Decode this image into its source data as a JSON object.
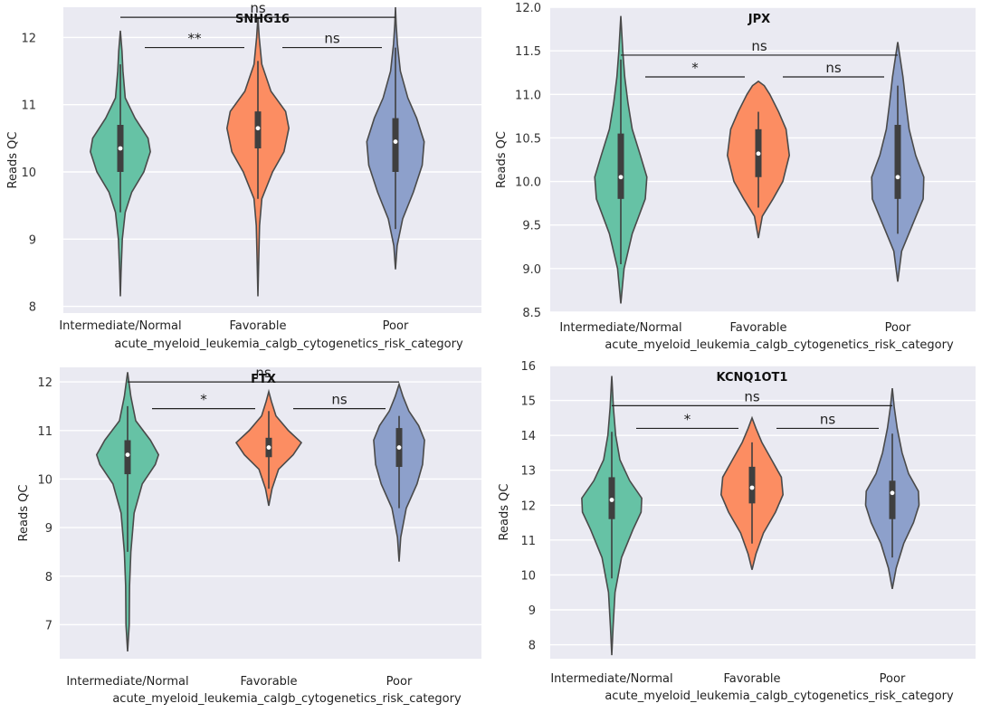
{
  "xlabel": "acute_myeloid_leukemia_calgb_cytogenetics_risk_category",
  "ylabel": "Reads QC",
  "colors": {
    "Intermediate/Normal": "#66c2a5",
    "Favorable": "#fc8d62",
    "Poor": "#8da0cb"
  },
  "chart_data": [
    {
      "type": "violin",
      "title": "SNHG16",
      "categories": [
        "Intermediate/Normal",
        "Favorable",
        "Poor"
      ],
      "ylim": [
        7.9,
        12.45
      ],
      "yticks": [
        "8",
        "9",
        "10",
        "11",
        "12"
      ],
      "violins": [
        {
          "category": "Intermediate/Normal",
          "min": 8.15,
          "max": 12.1,
          "whisker_low": 9.4,
          "whisker_high": 11.6,
          "q1": 10.0,
          "q3": 10.7,
          "median": 10.35,
          "shape": [
            [
              8.15,
              0
            ],
            [
              8.5,
              0.02
            ],
            [
              9.0,
              0.06
            ],
            [
              9.4,
              0.15
            ],
            [
              9.7,
              0.35
            ],
            [
              10.0,
              0.72
            ],
            [
              10.3,
              0.92
            ],
            [
              10.5,
              0.85
            ],
            [
              10.8,
              0.45
            ],
            [
              11.1,
              0.15
            ],
            [
              11.5,
              0.08
            ],
            [
              11.8,
              0.05
            ],
            [
              12.1,
              0
            ]
          ]
        },
        {
          "category": "Favorable",
          "min": 8.15,
          "max": 12.3,
          "whisker_low": 9.6,
          "whisker_high": 11.65,
          "q1": 10.35,
          "q3": 10.9,
          "median": 10.65,
          "shape": [
            [
              8.15,
              0
            ],
            [
              8.6,
              0.02
            ],
            [
              9.2,
              0.05
            ],
            [
              9.6,
              0.12
            ],
            [
              10.0,
              0.45
            ],
            [
              10.3,
              0.8
            ],
            [
              10.65,
              0.95
            ],
            [
              10.9,
              0.85
            ],
            [
              11.2,
              0.4
            ],
            [
              11.6,
              0.12
            ],
            [
              12.0,
              0.04
            ],
            [
              12.3,
              0
            ]
          ]
        },
        {
          "category": "Poor",
          "min": 8.55,
          "max": 12.45,
          "whisker_low": 9.15,
          "whisker_high": 11.85,
          "q1": 10.0,
          "q3": 10.8,
          "median": 10.45,
          "shape": [
            [
              8.55,
              0
            ],
            [
              8.9,
              0.05
            ],
            [
              9.3,
              0.22
            ],
            [
              9.7,
              0.55
            ],
            [
              10.1,
              0.82
            ],
            [
              10.45,
              0.88
            ],
            [
              10.8,
              0.65
            ],
            [
              11.1,
              0.38
            ],
            [
              11.5,
              0.15
            ],
            [
              11.9,
              0.06
            ],
            [
              12.2,
              0.02
            ],
            [
              12.45,
              0
            ]
          ]
        }
      ],
      "significance": [
        {
          "from": 0,
          "to": 2,
          "label": "ns",
          "y": 12.3,
          "span": "wide"
        },
        {
          "from": 0,
          "to": 1,
          "label": "**",
          "y": 11.85,
          "span": "inner"
        },
        {
          "from": 1,
          "to": 2,
          "label": "ns",
          "y": 11.85,
          "span": "inner"
        }
      ]
    },
    {
      "type": "violin",
      "title": "JPX",
      "categories": [
        "Intermediate/Normal",
        "Favorable",
        "Poor"
      ],
      "ylim": [
        8.5,
        12.0
      ],
      "yticks": [
        "8.5",
        "9.0",
        "9.5",
        "10.0",
        "10.5",
        "11.0",
        "11.5",
        "12.0"
      ],
      "violins": [
        {
          "category": "Intermediate/Normal",
          "min": 8.6,
          "max": 11.9,
          "whisker_low": 9.05,
          "whisker_high": 11.4,
          "q1": 9.8,
          "q3": 10.55,
          "median": 10.05,
          "shape": [
            [
              8.6,
              0
            ],
            [
              9.0,
              0.1
            ],
            [
              9.4,
              0.35
            ],
            [
              9.8,
              0.75
            ],
            [
              10.05,
              0.8
            ],
            [
              10.3,
              0.6
            ],
            [
              10.6,
              0.35
            ],
            [
              10.9,
              0.22
            ],
            [
              11.2,
              0.12
            ],
            [
              11.5,
              0.06
            ],
            [
              11.9,
              0
            ]
          ]
        },
        {
          "category": "Favorable",
          "min": 9.35,
          "max": 11.15,
          "whisker_low": 9.7,
          "whisker_high": 10.8,
          "q1": 10.05,
          "q3": 10.6,
          "median": 10.32,
          "shape": [
            [
              9.35,
              0
            ],
            [
              9.6,
              0.12
            ],
            [
              9.8,
              0.45
            ],
            [
              10.0,
              0.75
            ],
            [
              10.3,
              0.95
            ],
            [
              10.6,
              0.85
            ],
            [
              10.8,
              0.62
            ],
            [
              11.0,
              0.35
            ],
            [
              11.1,
              0.18
            ],
            [
              11.15,
              0
            ]
          ]
        },
        {
          "category": "Poor",
          "min": 8.85,
          "max": 11.6,
          "whisker_low": 9.4,
          "whisker_high": 11.1,
          "q1": 9.8,
          "q3": 10.65,
          "median": 10.05,
          "shape": [
            [
              8.85,
              0
            ],
            [
              9.2,
              0.12
            ],
            [
              9.5,
              0.45
            ],
            [
              9.8,
              0.78
            ],
            [
              10.05,
              0.8
            ],
            [
              10.3,
              0.55
            ],
            [
              10.6,
              0.35
            ],
            [
              10.9,
              0.25
            ],
            [
              11.2,
              0.16
            ],
            [
              11.6,
              0
            ]
          ]
        }
      ],
      "significance": [
        {
          "from": 0,
          "to": 2,
          "label": "ns",
          "y": 11.45,
          "span": "wide"
        },
        {
          "from": 0,
          "to": 1,
          "label": "*",
          "y": 11.2,
          "span": "inner"
        },
        {
          "from": 1,
          "to": 2,
          "label": "ns",
          "y": 11.2,
          "span": "inner"
        }
      ]
    },
    {
      "type": "violin",
      "title": "FTX",
      "categories": [
        "Intermediate/Normal",
        "Favorable",
        "Poor"
      ],
      "ylim": [
        6.3,
        12.3
      ],
      "yticks": [
        "7",
        "8",
        "9",
        "10",
        "11",
        "12"
      ],
      "violins": [
        {
          "category": "Intermediate/Normal",
          "min": 6.45,
          "max": 12.2,
          "whisker_low": 8.5,
          "whisker_high": 11.5,
          "q1": 10.1,
          "q3": 10.8,
          "median": 10.5,
          "shape": [
            [
              6.45,
              0
            ],
            [
              7.0,
              0.05
            ],
            [
              7.8,
              0.06
            ],
            [
              8.5,
              0.1
            ],
            [
              9.3,
              0.2
            ],
            [
              9.9,
              0.45
            ],
            [
              10.3,
              0.85
            ],
            [
              10.5,
              0.95
            ],
            [
              10.8,
              0.7
            ],
            [
              11.2,
              0.25
            ],
            [
              11.7,
              0.1
            ],
            [
              12.2,
              0
            ]
          ]
        },
        {
          "category": "Favorable",
          "min": 9.45,
          "max": 11.8,
          "whisker_low": 9.8,
          "whisker_high": 11.4,
          "q1": 10.45,
          "q3": 10.85,
          "median": 10.65,
          "shape": [
            [
              9.45,
              0
            ],
            [
              9.8,
              0.1
            ],
            [
              10.2,
              0.3
            ],
            [
              10.5,
              0.75
            ],
            [
              10.75,
              1.0
            ],
            [
              11.0,
              0.6
            ],
            [
              11.3,
              0.22
            ],
            [
              11.6,
              0.08
            ],
            [
              11.8,
              0
            ]
          ]
        },
        {
          "category": "Poor",
          "min": 8.3,
          "max": 11.95,
          "whisker_low": 9.4,
          "whisker_high": 11.3,
          "q1": 10.25,
          "q3": 11.05,
          "median": 10.65,
          "shape": [
            [
              8.3,
              0
            ],
            [
              8.8,
              0.05
            ],
            [
              9.4,
              0.22
            ],
            [
              9.9,
              0.55
            ],
            [
              10.3,
              0.72
            ],
            [
              10.8,
              0.78
            ],
            [
              11.1,
              0.6
            ],
            [
              11.4,
              0.3
            ],
            [
              11.7,
              0.12
            ],
            [
              11.95,
              0
            ]
          ]
        }
      ],
      "significance": [
        {
          "from": 0,
          "to": 2,
          "label": "ns",
          "y": 12.0,
          "span": "wide"
        },
        {
          "from": 0,
          "to": 1,
          "label": "*",
          "y": 11.45,
          "span": "inner"
        },
        {
          "from": 1,
          "to": 2,
          "label": "ns",
          "y": 11.45,
          "span": "inner"
        }
      ]
    },
    {
      "type": "violin",
      "title": "KCNQ1OT1",
      "categories": [
        "Intermediate/Normal",
        "Favorable",
        "Poor"
      ],
      "ylim": [
        7.6,
        16.0
      ],
      "yticks": [
        "8",
        "9",
        "10",
        "11",
        "12",
        "13",
        "14",
        "15",
        "16"
      ],
      "violins": [
        {
          "category": "Intermediate/Normal",
          "min": 7.7,
          "max": 15.7,
          "whisker_low": 9.9,
          "whisker_high": 14.1,
          "q1": 11.6,
          "q3": 12.8,
          "median": 12.15,
          "shape": [
            [
              7.7,
              0
            ],
            [
              8.5,
              0.04
            ],
            [
              9.5,
              0.1
            ],
            [
              10.5,
              0.3
            ],
            [
              11.3,
              0.65
            ],
            [
              11.8,
              0.9
            ],
            [
              12.2,
              0.92
            ],
            [
              12.7,
              0.55
            ],
            [
              13.3,
              0.25
            ],
            [
              14.0,
              0.12
            ],
            [
              14.8,
              0.05
            ],
            [
              15.7,
              0
            ]
          ]
        },
        {
          "category": "Favorable",
          "min": 10.15,
          "max": 14.5,
          "whisker_low": 10.9,
          "whisker_high": 13.8,
          "q1": 12.05,
          "q3": 13.1,
          "median": 12.5,
          "shape": [
            [
              10.15,
              0
            ],
            [
              10.6,
              0.12
            ],
            [
              11.2,
              0.35
            ],
            [
              11.8,
              0.72
            ],
            [
              12.3,
              0.95
            ],
            [
              12.8,
              0.9
            ],
            [
              13.3,
              0.6
            ],
            [
              13.8,
              0.3
            ],
            [
              14.2,
              0.12
            ],
            [
              14.5,
              0
            ]
          ]
        },
        {
          "category": "Poor",
          "min": 9.6,
          "max": 15.35,
          "whisker_low": 10.5,
          "whisker_high": 14.05,
          "q1": 11.6,
          "q3": 12.7,
          "median": 12.35,
          "shape": [
            [
              9.6,
              0
            ],
            [
              10.2,
              0.12
            ],
            [
              10.9,
              0.35
            ],
            [
              11.5,
              0.65
            ],
            [
              12.0,
              0.82
            ],
            [
              12.4,
              0.8
            ],
            [
              12.9,
              0.5
            ],
            [
              13.5,
              0.3
            ],
            [
              14.2,
              0.15
            ],
            [
              14.8,
              0.06
            ],
            [
              15.35,
              0
            ]
          ]
        }
      ],
      "significance": [
        {
          "from": 0,
          "to": 2,
          "label": "ns",
          "y": 14.85,
          "span": "wide"
        },
        {
          "from": 0,
          "to": 1,
          "label": "*",
          "y": 14.2,
          "span": "inner"
        },
        {
          "from": 1,
          "to": 2,
          "label": "ns",
          "y": 14.2,
          "span": "inner"
        }
      ]
    }
  ]
}
